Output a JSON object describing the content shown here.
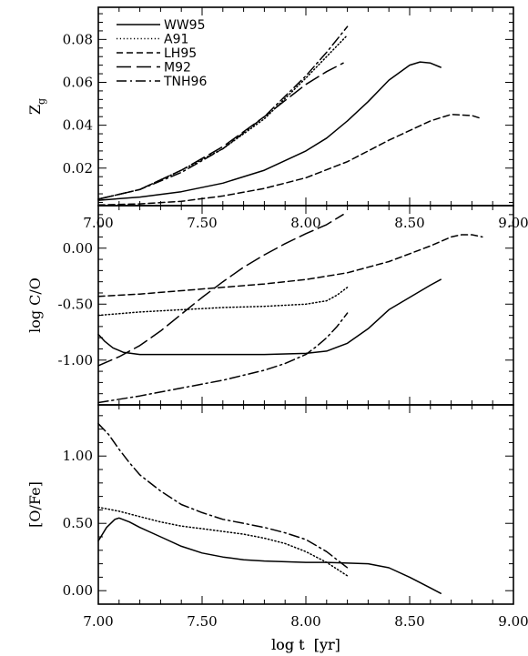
{
  "chart_data": [
    {
      "type": "line",
      "ylabel": "Z_g",
      "ylabel_main": "Z",
      "ylabel_sub": "g",
      "xlabel": "log t  [yr]",
      "xlim": [
        7.0,
        9.0
      ],
      "ylim": [
        0.0025,
        0.095
      ],
      "x_ticks": [
        7.0,
        7.5,
        8.0,
        8.5,
        9.0
      ],
      "x_tick_labels": [
        "7.00",
        "7.50",
        "8.00",
        "8.50",
        "9.00"
      ],
      "y_ticks": [
        0.02,
        0.04,
        0.06,
        0.08
      ],
      "y_tick_labels": [
        "0.02",
        "0.04",
        "0.06",
        "0.08"
      ],
      "legend": [
        "WW95",
        "A91",
        "LH95",
        "M92",
        "TNH96"
      ],
      "legend_position": "top-left",
      "series": [
        {
          "name": "WW95",
          "dash": "solid",
          "x": [
            7.0,
            7.2,
            7.4,
            7.6,
            7.8,
            8.0,
            8.1,
            8.2,
            8.3,
            8.4,
            8.5,
            8.55,
            8.6,
            8.65
          ],
          "y": [
            0.005,
            0.0065,
            0.009,
            0.013,
            0.019,
            0.028,
            0.034,
            0.042,
            0.051,
            0.061,
            0.068,
            0.0695,
            0.069,
            0.067
          ]
        },
        {
          "name": "A91",
          "dash": "dotted",
          "x": [
            7.0,
            7.2,
            7.4,
            7.6,
            7.8,
            8.0,
            8.1,
            8.2
          ],
          "y": [
            0.0055,
            0.01,
            0.019,
            0.029,
            0.043,
            0.062,
            0.072,
            0.082
          ]
        },
        {
          "name": "LH95",
          "dash": "dashed",
          "x": [
            7.0,
            7.2,
            7.4,
            7.6,
            7.8,
            8.0,
            8.2,
            8.4,
            8.6,
            8.7,
            8.8,
            8.85
          ],
          "y": [
            0.0028,
            0.0033,
            0.0045,
            0.007,
            0.0105,
            0.0155,
            0.023,
            0.033,
            0.042,
            0.045,
            0.0445,
            0.043
          ]
        },
        {
          "name": "M92",
          "dash": "longdash",
          "x": [
            7.0,
            7.2,
            7.4,
            7.6,
            7.8,
            8.0,
            8.1,
            8.18
          ],
          "y": [
            0.0055,
            0.01,
            0.019,
            0.03,
            0.044,
            0.059,
            0.065,
            0.069
          ]
        },
        {
          "name": "TNH96",
          "dash": "dashdot",
          "x": [
            7.0,
            7.2,
            7.4,
            7.6,
            7.8,
            8.0,
            8.1,
            8.2
          ],
          "y": [
            0.0055,
            0.01,
            0.018,
            0.029,
            0.044,
            0.063,
            0.074,
            0.086
          ]
        }
      ]
    },
    {
      "type": "line",
      "ylabel": "log C/O",
      "xlim": [
        7.0,
        9.0
      ],
      "ylim": [
        -1.4,
        0.38
      ],
      "x_ticks": [
        7.0,
        7.5,
        8.0,
        8.5,
        9.0
      ],
      "y_ticks": [
        -1.0,
        -0.5,
        0.0
      ],
      "y_tick_labels": [
        "-1.00",
        "-0.50",
        "0.00"
      ],
      "series": [
        {
          "name": "WW95",
          "dash": "solid",
          "x": [
            7.0,
            7.03,
            7.07,
            7.12,
            7.2,
            7.4,
            7.6,
            7.8,
            8.0,
            8.1,
            8.2,
            8.3,
            8.4,
            8.5,
            8.6,
            8.65
          ],
          "y": [
            -0.77,
            -0.83,
            -0.89,
            -0.93,
            -0.95,
            -0.95,
            -0.95,
            -0.95,
            -0.94,
            -0.92,
            -0.85,
            -0.72,
            -0.55,
            -0.44,
            -0.33,
            -0.28
          ]
        },
        {
          "name": "A91",
          "dash": "dotted",
          "x": [
            7.0,
            7.2,
            7.4,
            7.6,
            7.8,
            8.0,
            8.1,
            8.15,
            8.2
          ],
          "y": [
            -0.6,
            -0.57,
            -0.55,
            -0.53,
            -0.52,
            -0.5,
            -0.47,
            -0.42,
            -0.35
          ]
        },
        {
          "name": "LH95",
          "dash": "dashed",
          "x": [
            7.0,
            7.2,
            7.4,
            7.6,
            7.8,
            8.0,
            8.2,
            8.4,
            8.6,
            8.7,
            8.75,
            8.8,
            8.85
          ],
          "y": [
            -0.43,
            -0.41,
            -0.38,
            -0.35,
            -0.32,
            -0.28,
            -0.22,
            -0.12,
            0.02,
            0.1,
            0.12,
            0.12,
            0.1
          ]
        },
        {
          "name": "M92",
          "dash": "longdash",
          "x": [
            7.0,
            7.1,
            7.2,
            7.3,
            7.4,
            7.5,
            7.6,
            7.7,
            7.8,
            7.9,
            8.0,
            8.1,
            8.18
          ],
          "y": [
            -1.05,
            -0.97,
            -0.87,
            -0.74,
            -0.59,
            -0.44,
            -0.3,
            -0.17,
            -0.06,
            0.04,
            0.13,
            0.21,
            0.3
          ]
        },
        {
          "name": "TNH96",
          "dash": "dashdot",
          "x": [
            7.0,
            7.2,
            7.4,
            7.6,
            7.8,
            7.9,
            8.0,
            8.05,
            8.1,
            8.15,
            8.2
          ],
          "y": [
            -1.38,
            -1.32,
            -1.25,
            -1.18,
            -1.09,
            -1.03,
            -0.95,
            -0.88,
            -0.8,
            -0.7,
            -0.58
          ]
        }
      ]
    },
    {
      "type": "line",
      "ylabel": "[O/Fe]",
      "xlabel": "log t  [yr]",
      "xlim": [
        7.0,
        9.0
      ],
      "ylim": [
        -0.1,
        1.38
      ],
      "x_ticks": [
        7.0,
        7.5,
        8.0,
        8.5,
        9.0
      ],
      "x_tick_labels": [
        "7.00",
        "7.50",
        "8.00",
        "8.50",
        "9.00"
      ],
      "y_ticks": [
        0.0,
        0.5,
        1.0
      ],
      "y_tick_labels": [
        "0.00",
        "0.50",
        "1.00"
      ],
      "series": [
        {
          "name": "WW95",
          "dash": "solid",
          "x": [
            7.0,
            7.04,
            7.08,
            7.1,
            7.15,
            7.2,
            7.3,
            7.4,
            7.5,
            7.6,
            7.7,
            7.8,
            7.9,
            8.0,
            8.1,
            8.2,
            8.3,
            8.4,
            8.5,
            8.6,
            8.65
          ],
          "y": [
            0.37,
            0.47,
            0.53,
            0.54,
            0.51,
            0.47,
            0.4,
            0.33,
            0.28,
            0.25,
            0.23,
            0.22,
            0.215,
            0.21,
            0.21,
            0.205,
            0.2,
            0.17,
            0.1,
            0.02,
            -0.02
          ]
        },
        {
          "name": "A91",
          "dash": "dotted",
          "x": [
            7.0,
            7.1,
            7.2,
            7.3,
            7.4,
            7.5,
            7.6,
            7.7,
            7.8,
            7.9,
            8.0,
            8.1,
            8.15,
            8.2
          ],
          "y": [
            0.62,
            0.59,
            0.55,
            0.51,
            0.48,
            0.46,
            0.44,
            0.42,
            0.39,
            0.35,
            0.29,
            0.21,
            0.16,
            0.11
          ]
        },
        {
          "name": "TNH96",
          "dash": "dashdot",
          "x": [
            7.0,
            7.05,
            7.1,
            7.15,
            7.2,
            7.3,
            7.4,
            7.5,
            7.6,
            7.7,
            7.8,
            7.9,
            8.0,
            8.1,
            8.15,
            8.2
          ],
          "y": [
            1.24,
            1.16,
            1.05,
            0.95,
            0.86,
            0.74,
            0.64,
            0.58,
            0.53,
            0.5,
            0.47,
            0.43,
            0.38,
            0.29,
            0.23,
            0.17
          ]
        }
      ]
    }
  ]
}
